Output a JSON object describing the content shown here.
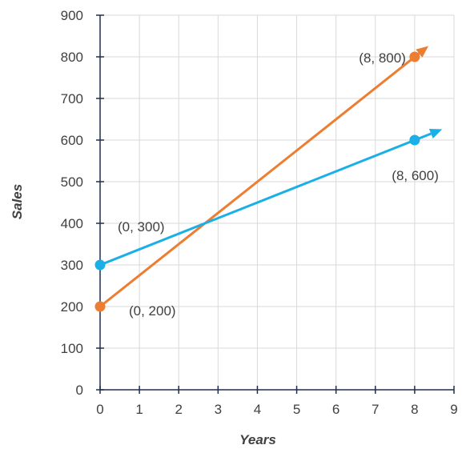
{
  "chart_data": {
    "type": "line",
    "xlabel": "Years",
    "ylabel": "Sales",
    "xlim": [
      0,
      9
    ],
    "ylim": [
      0,
      900
    ],
    "x_ticks": [
      0,
      1,
      2,
      3,
      4,
      5,
      6,
      7,
      8,
      9
    ],
    "y_ticks": [
      0,
      100,
      200,
      300,
      400,
      500,
      600,
      700,
      800,
      900
    ],
    "grid": true,
    "series": [
      {
        "color": "#ED7D31",
        "points": [
          {
            "x": 0,
            "y": 200
          },
          {
            "x": 8,
            "y": 800
          }
        ],
        "labels": [
          "(0, 200)",
          "(8, 800)"
        ],
        "arrow_end": {
          "x": 8.35,
          "y": 826
        }
      },
      {
        "color": "#1AAFE6",
        "points": [
          {
            "x": 0,
            "y": 300
          },
          {
            "x": 8,
            "y": 600
          }
        ],
        "labels": [
          "(0, 300)",
          "(8, 600)"
        ],
        "arrow_end": {
          "x": 8.7,
          "y": 626
        }
      }
    ]
  }
}
